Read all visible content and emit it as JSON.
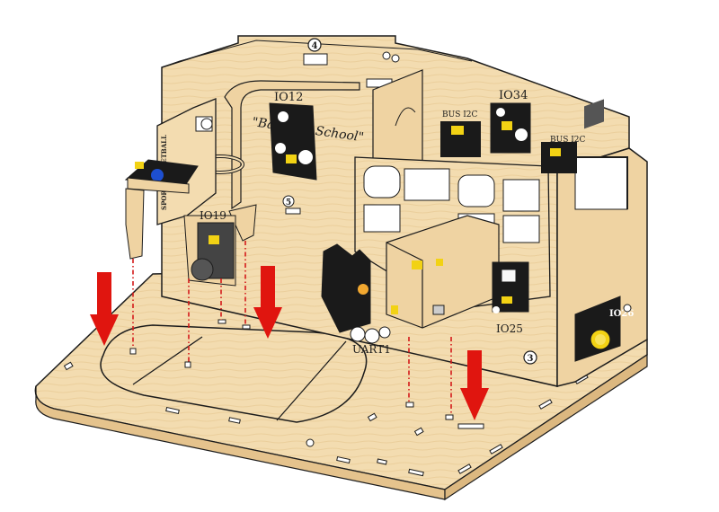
{
  "labels": {
    "io12": "IO12",
    "io34": "IO34",
    "io19": "IO19",
    "io25": "IO25",
    "io26": "IO26",
    "uart1": "UART1",
    "bus_i2c_left": "BUS I2C",
    "bus_i2c_right": "BUS I2C",
    "sport_basketball": "SPORT BASKETBALL",
    "back_to_school": "\"Back TO School\"",
    "step_4": "4",
    "step_5": "5",
    "step_3": "3"
  },
  "colors": {
    "wood": "#f3dcb0",
    "wood_dark": "#e5c38d",
    "wood_edge": "#c9a46a",
    "line": "#1c1c1c",
    "arrow": "#e0150f",
    "guide": "#d41a1a",
    "module_black": "#1a1a1a",
    "button_yellow": "#f2d214",
    "sensor_blue": "#1d4fd1"
  },
  "icons": [
    "down-arrow-icon",
    "down-arrow-icon",
    "down-arrow-icon",
    "down-arrow-icon"
  ]
}
